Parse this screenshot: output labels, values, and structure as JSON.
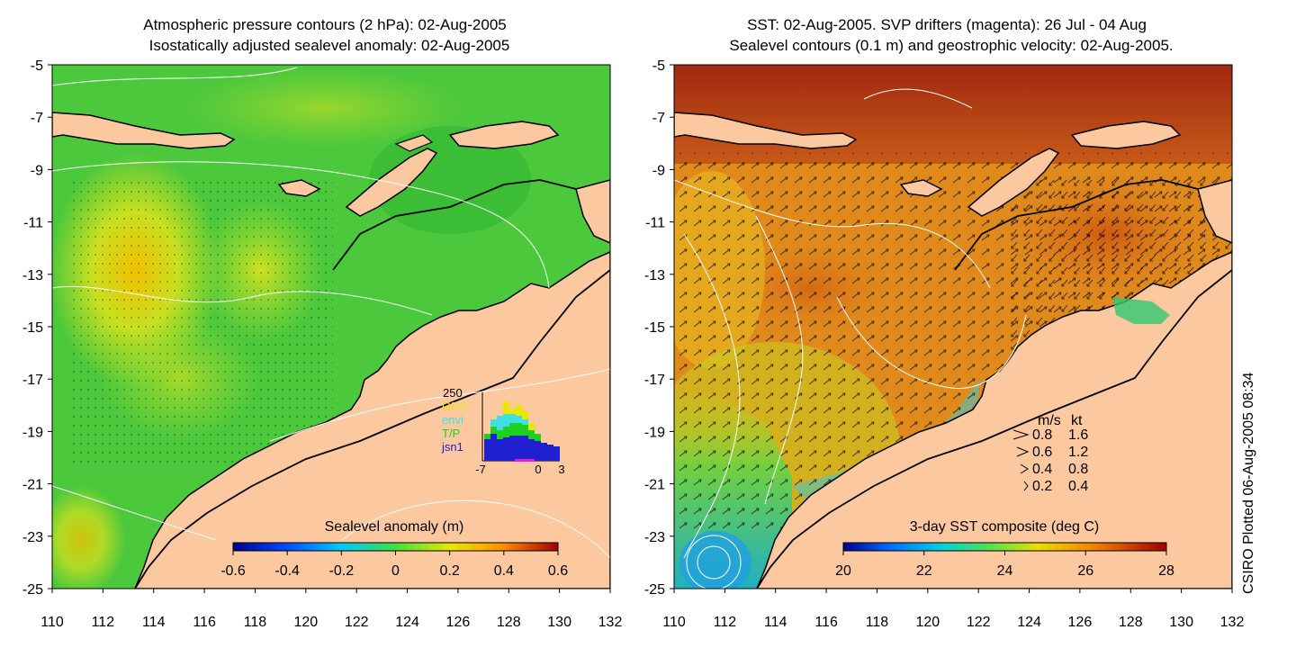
{
  "left_panel": {
    "title_line1": "Atmospheric pressure contours (2 hPa): 02-Aug-2005",
    "title_line2": "Isostatically adjusted sealevel anomaly: 02-Aug-2005",
    "x_ticks": [
      "110",
      "112",
      "114",
      "116",
      "118",
      "120",
      "122",
      "124",
      "126",
      "128",
      "130",
      "132"
    ],
    "y_ticks": [
      "-5",
      "-7",
      "-9",
      "-11",
      "-13",
      "-15",
      "-17",
      "-19",
      "-21",
      "-23",
      "-25"
    ],
    "colorbar_label": "Sealevel anomaly (m)",
    "colorbar_ticks": [
      "-0.6",
      "-0.4",
      "-0.2",
      "0",
      "0.2",
      "0.4",
      "0.6"
    ],
    "inset": {
      "max_label": "250",
      "series": [
        {
          "name": "GFO",
          "color": "#e8e800"
        },
        {
          "name": "envi",
          "color": "#40e0e0"
        },
        {
          "name": "T/P",
          "color": "#20d020"
        },
        {
          "name": "jsn1",
          "color": "#2020d0"
        }
      ],
      "x_ticks": [
        "-7",
        "0",
        "3"
      ]
    }
  },
  "right_panel": {
    "title_line1": "SST: 02-Aug-2005. SVP drifters (magenta): 26 Jul - 04 Aug",
    "title_line2": "Sealevel contours (0.1 m) and geostrophic velocity: 02-Aug-2005.",
    "x_ticks": [
      "110",
      "112",
      "114",
      "116",
      "118",
      "120",
      "122",
      "124",
      "126",
      "128",
      "130",
      "132"
    ],
    "y_ticks": [
      "-5",
      "-7",
      "-9",
      "-11",
      "-13",
      "-15",
      "-17",
      "-19",
      "-21",
      "-23",
      "-25"
    ],
    "colorbar_label": "3-day SST composite (deg C)",
    "colorbar_ticks": [
      "20",
      "22",
      "24",
      "26",
      "28"
    ],
    "velocity_key": {
      "header_ms": "m/s",
      "header_kt": "kt",
      "rows": [
        {
          "ms": "0.8",
          "kt": "1.6"
        },
        {
          "ms": "0.6",
          "kt": "1.2"
        },
        {
          "ms": "0.4",
          "kt": "0.8"
        },
        {
          "ms": "0.2",
          "kt": "0.4"
        }
      ]
    }
  },
  "credit": "CSIRO Plotted 06-Aug-2005 08:34",
  "colors": {
    "land": "#fcc8a0",
    "sla_bg": "#4cc83c",
    "sst_bg": "#e08a1c",
    "contour": "#ffffff"
  }
}
